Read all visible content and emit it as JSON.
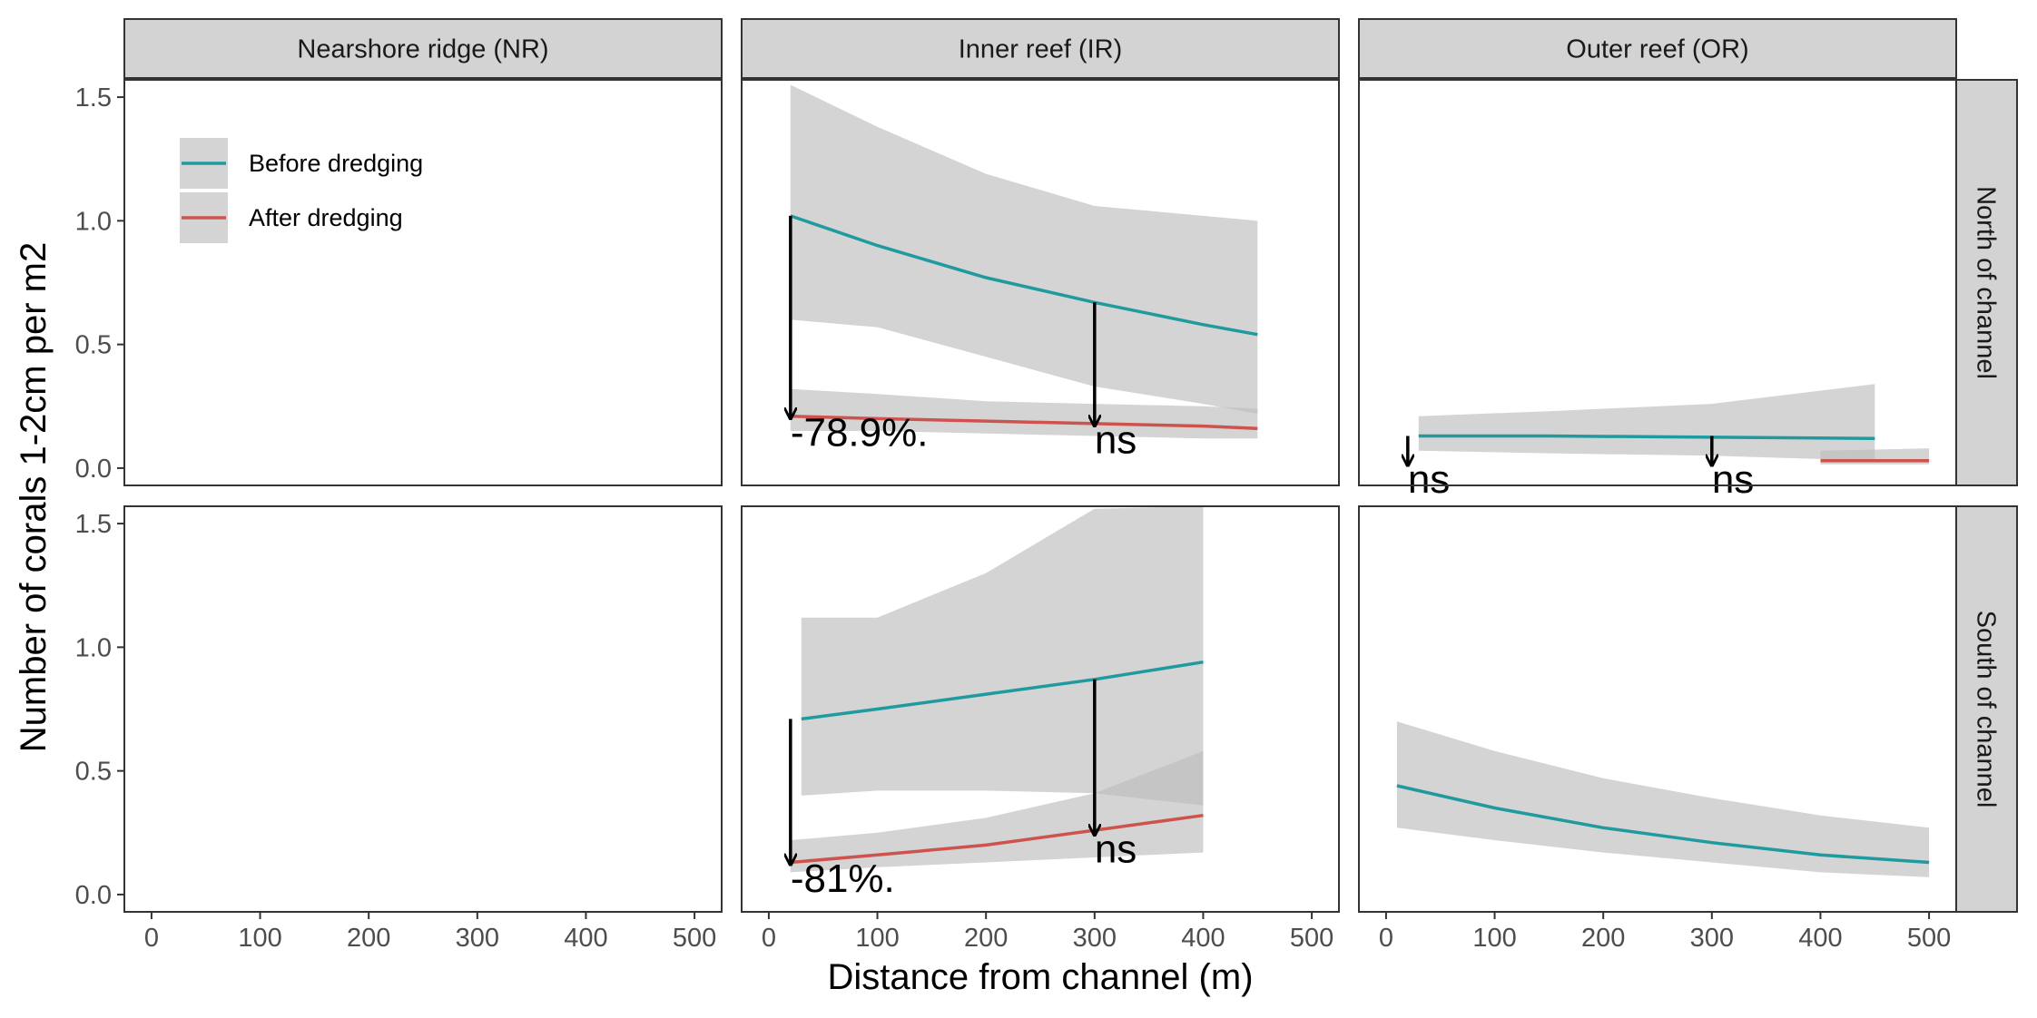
{
  "chart_data": {
    "type": "line",
    "facet_layout": "grid",
    "xlabel": "Distance from channel (m)",
    "ylabel": "Number of corals 1-2cm per m2",
    "xlim": [
      -25,
      525
    ],
    "ylim": [
      -0.07,
      1.57
    ],
    "x_ticks": [
      0,
      100,
      200,
      300,
      400,
      500
    ],
    "y_ticks": [
      0.0,
      0.5,
      1.0,
      1.5
    ],
    "x_tick_labels": [
      "0",
      "100",
      "200",
      "300",
      "400",
      "500"
    ],
    "y_tick_labels": [
      "0.0",
      "0.5",
      "1.0",
      "1.5"
    ],
    "columns": [
      "Nearshore ridge (NR)",
      "Inner reef (IR)",
      "Outer reef (OR)"
    ],
    "rows": [
      "North of channel",
      "South of channel"
    ],
    "grid": false,
    "legend": {
      "placement": "inside top-left of first panel",
      "entries": [
        {
          "label": "Before dredging",
          "color": "#1f9a9e"
        },
        {
          "label": "After dredging",
          "color": "#cd534c"
        }
      ]
    },
    "colors": {
      "before": "#1f9a9e",
      "after": "#cd534c",
      "ribbon": "#bdbdbd",
      "strip_fill": "#d3d3d3",
      "strip_border": "#333333"
    },
    "panels": [
      {
        "row": 0,
        "col": 0,
        "series": [],
        "annotations": []
      },
      {
        "row": 0,
        "col": 1,
        "series": [
          {
            "name": "Before dredging",
            "x": [
              20,
              100,
              200,
              300,
              400,
              450
            ],
            "y": [
              1.02,
              0.9,
              0.77,
              0.67,
              0.58,
              0.54
            ],
            "lower": [
              0.6,
              0.57,
              0.45,
              0.33,
              0.26,
              0.22
            ],
            "upper": [
              1.55,
              1.38,
              1.19,
              1.06,
              1.02,
              1.0
            ]
          },
          {
            "name": "After dredging",
            "x": [
              20,
              100,
              200,
              300,
              400,
              450
            ],
            "y": [
              0.21,
              0.2,
              0.19,
              0.18,
              0.17,
              0.16
            ],
            "lower": [
              0.15,
              0.15,
              0.14,
              0.13,
              0.12,
              0.12
            ],
            "upper": [
              0.32,
              0.3,
              0.27,
              0.26,
              0.25,
              0.24
            ]
          }
        ],
        "annotations": [
          {
            "x": 20,
            "y_from": 1.02,
            "y_to": 0.2,
            "label": "-78.9%."
          },
          {
            "x": 300,
            "y_from": 0.67,
            "y_to": 0.17,
            "label": "ns"
          }
        ]
      },
      {
        "row": 0,
        "col": 2,
        "series": [
          {
            "name": "Before dredging",
            "x": [
              30,
              150,
              300,
              450
            ],
            "y": [
              0.13,
              0.13,
              0.125,
              0.12
            ],
            "lower": [
              0.07,
              0.06,
              0.05,
              0.03
            ],
            "upper": [
              0.21,
              0.23,
              0.26,
              0.34
            ]
          },
          {
            "name": "After dredging",
            "x": [
              400,
              500
            ],
            "y": [
              0.03,
              0.03
            ],
            "lower": [
              0.015,
              0.015
            ],
            "upper": [
              0.07,
              0.08
            ]
          }
        ],
        "annotations": [
          {
            "x": 20,
            "y_from": 0.13,
            "y_to": 0.01,
            "label": "ns"
          },
          {
            "x": 300,
            "y_from": 0.13,
            "y_to": 0.01,
            "label": "ns"
          }
        ]
      },
      {
        "row": 1,
        "col": 0,
        "series": [],
        "annotations": []
      },
      {
        "row": 1,
        "col": 1,
        "series": [
          {
            "name": "Before dredging",
            "x": [
              30,
              100,
              200,
              300,
              400
            ],
            "y": [
              0.71,
              0.75,
              0.81,
              0.87,
              0.94
            ],
            "lower": [
              0.4,
              0.42,
              0.42,
              0.41,
              0.36
            ],
            "upper": [
              1.12,
              1.12,
              1.3,
              1.56,
              1.62
            ]
          },
          {
            "name": "After dredging",
            "x": [
              20,
              100,
              200,
              300,
              400
            ],
            "y": [
              0.13,
              0.16,
              0.2,
              0.26,
              0.32
            ],
            "lower": [
              0.09,
              0.11,
              0.13,
              0.15,
              0.17
            ],
            "upper": [
              0.22,
              0.25,
              0.31,
              0.41,
              0.58
            ]
          }
        ],
        "annotations": [
          {
            "x": 20,
            "y_from": 0.71,
            "y_to": 0.12,
            "label": "-81%."
          },
          {
            "x": 300,
            "y_from": 0.87,
            "y_to": 0.24,
            "label": "ns"
          }
        ]
      },
      {
        "row": 1,
        "col": 2,
        "series": [
          {
            "name": "Before dredging",
            "x": [
              10,
              100,
              200,
              300,
              400,
              500
            ],
            "y": [
              0.44,
              0.35,
              0.27,
              0.21,
              0.16,
              0.13
            ],
            "lower": [
              0.27,
              0.22,
              0.17,
              0.13,
              0.09,
              0.07
            ],
            "upper": [
              0.7,
              0.58,
              0.47,
              0.39,
              0.32,
              0.27
            ]
          }
        ],
        "annotations": []
      }
    ]
  }
}
